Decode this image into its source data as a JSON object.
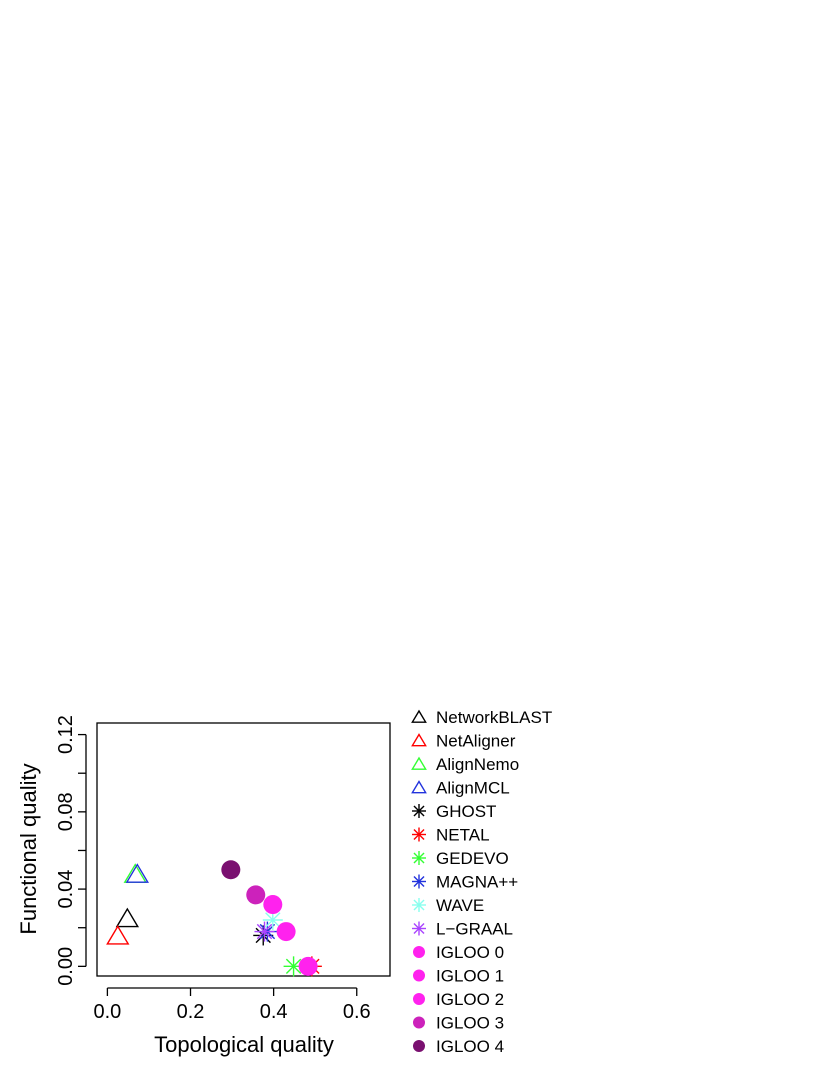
{
  "chart_data": {
    "type": "scatter",
    "title": "",
    "xlabel": "Topological quality",
    "ylabel": "Functional quality",
    "xlim": [
      -0.025,
      0.68
    ],
    "ylim": [
      -0.005,
      0.126
    ],
    "x_ticks": [
      {
        "value": 0.0,
        "label": "0.0"
      },
      {
        "value": 0.2,
        "label": "0.2"
      },
      {
        "value": 0.4,
        "label": "0.4"
      },
      {
        "value": 0.6,
        "label": "0.6"
      }
    ],
    "y_ticks": [
      {
        "value": 0.0,
        "label": "0.00"
      },
      {
        "value": 0.02,
        "label": ""
      },
      {
        "value": 0.04,
        "label": "0.04"
      },
      {
        "value": 0.06,
        "label": ""
      },
      {
        "value": 0.08,
        "label": "0.08"
      },
      {
        "value": 0.1,
        "label": ""
      },
      {
        "value": 0.12,
        "label": "0.12"
      }
    ],
    "legend_position": "right",
    "series": [
      {
        "name": "NetworkBLAST",
        "marker": "triangle",
        "color": "#000000",
        "x": 0.048,
        "y": 0.024
      },
      {
        "name": "NetAligner",
        "marker": "triangle",
        "color": "#ff0000",
        "x": 0.025,
        "y": 0.015
      },
      {
        "name": "AlignNemo",
        "marker": "triangle",
        "color": "#33ff33",
        "x": 0.067,
        "y": 0.047
      },
      {
        "name": "AlignMCL",
        "marker": "triangle",
        "color": "#2233dd",
        "x": 0.072,
        "y": 0.047
      },
      {
        "name": "GHOST",
        "marker": "asterisk",
        "color": "#000000",
        "x": 0.375,
        "y": 0.016
      },
      {
        "name": "NETAL",
        "marker": "asterisk",
        "color": "#ff0000",
        "x": 0.492,
        "y": 0.0
      },
      {
        "name": "GEDEVO",
        "marker": "asterisk",
        "color": "#33ff33",
        "x": 0.448,
        "y": 0.0
      },
      {
        "name": "MAGNA++",
        "marker": "asterisk",
        "color": "#2233dd",
        "x": 0.385,
        "y": 0.018
      },
      {
        "name": "WAVE",
        "marker": "asterisk",
        "color": "#88ffee",
        "x": 0.398,
        "y": 0.024
      },
      {
        "name": "L−GRAAL",
        "marker": "asterisk",
        "color": "#aa44ff",
        "x": 0.378,
        "y": 0.018
      },
      {
        "name": "IGLOO 0",
        "marker": "circle",
        "color": "#ff22ee",
        "x": 0.483,
        "y": 0.0
      },
      {
        "name": "IGLOO 1",
        "marker": "circle",
        "color": "#ff22ee",
        "x": 0.43,
        "y": 0.018
      },
      {
        "name": "IGLOO 2",
        "marker": "circle",
        "color": "#ff22ee",
        "x": 0.398,
        "y": 0.032
      },
      {
        "name": "IGLOO 3",
        "marker": "circle",
        "color": "#cc22bb",
        "x": 0.357,
        "y": 0.037
      },
      {
        "name": "IGLOO 4",
        "marker": "circle",
        "color": "#7a1070",
        "x": 0.297,
        "y": 0.05
      }
    ]
  }
}
